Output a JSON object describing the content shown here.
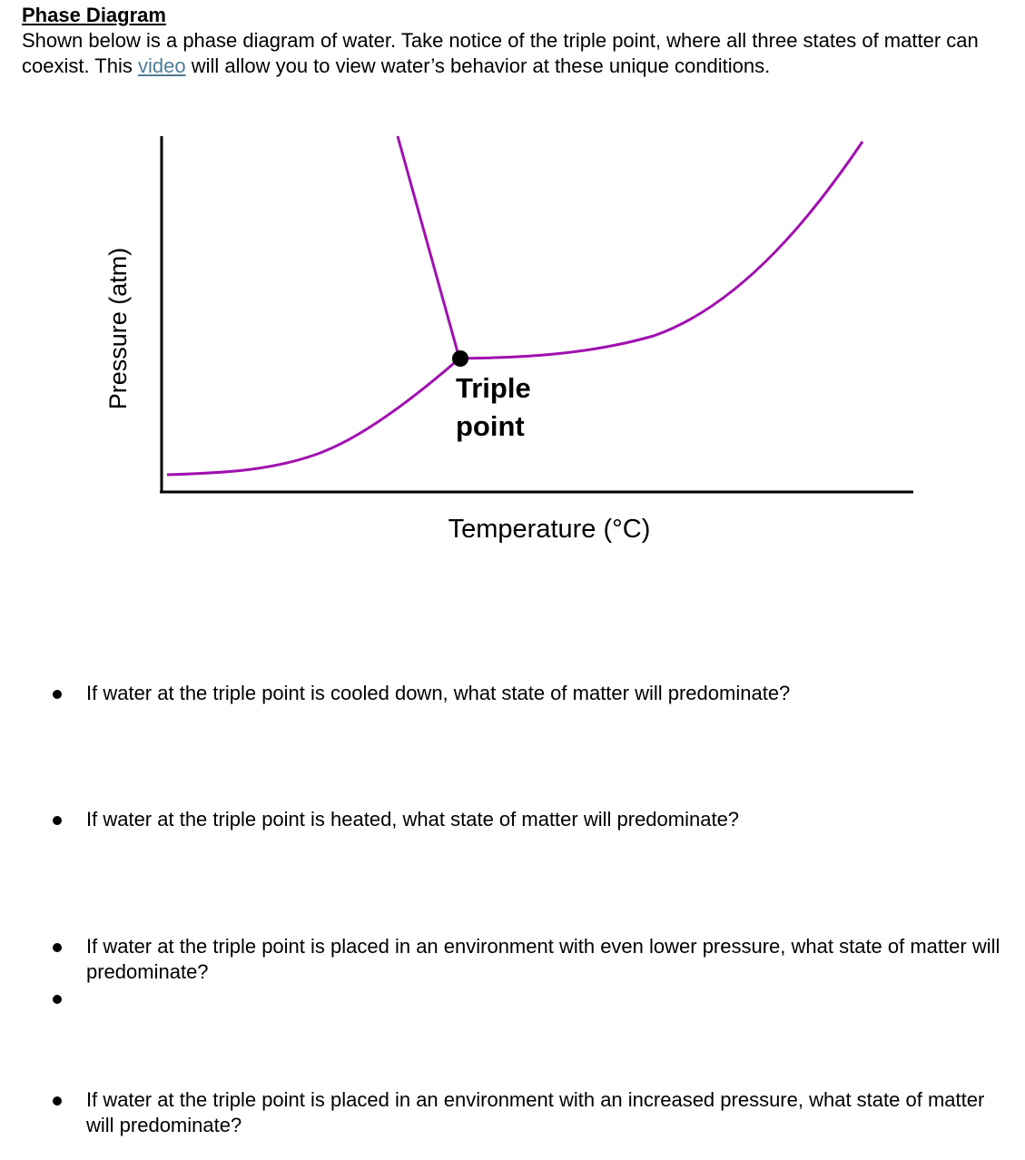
{
  "heading": "Phase Diagram",
  "intro": {
    "before_link": "Shown below is a phase diagram of water. Take notice of the triple point, where all three states of matter can coexist. This ",
    "link_text": "video",
    "after_link": " will allow you to view water’s behavior at these unique conditions."
  },
  "diagram": {
    "y_axis_label": "Pressure (atm)",
    "x_axis_label": "Temperature (°C)",
    "triple_point_label_line1": "Triple",
    "triple_point_label_line2": "point",
    "curve_color": "#a010b0",
    "axis_color": "#000000"
  },
  "questions": [
    "If water at the triple point is cooled down, what state of matter will predominate?",
    "If water at the triple point is heated, what state of matter will predominate?",
    "If water at the triple point is placed in an environment with even lower pressure, what state of matter will predominate?",
    "",
    "If water at the triple point is placed in an environment with an increased pressure, what state of matter will predominate?"
  ]
}
